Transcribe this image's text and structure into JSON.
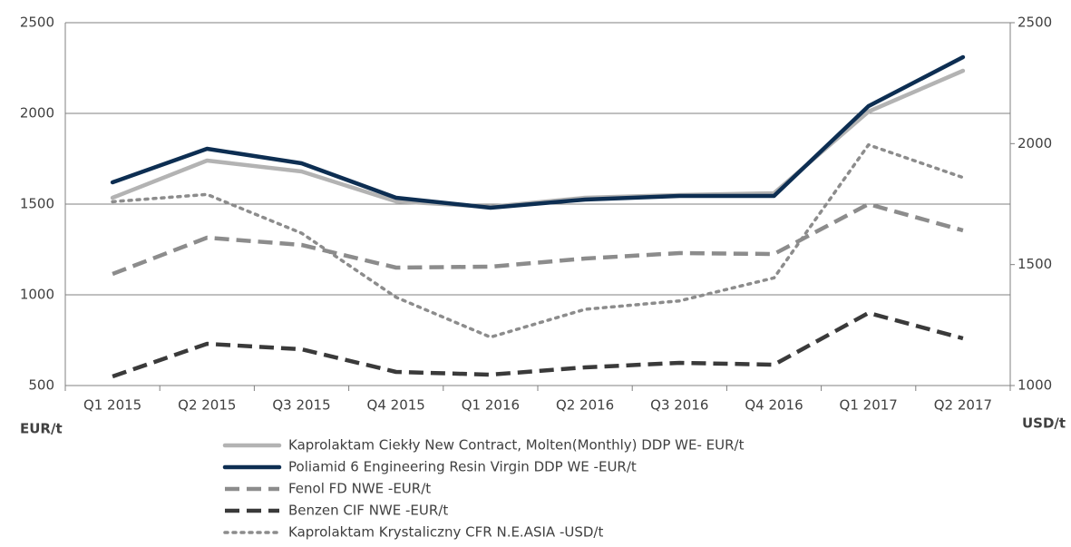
{
  "chart_data": {
    "type": "line",
    "categories": [
      "Q1 2015",
      "Q2 2015",
      "Q3 2015",
      "Q4 2015",
      "Q1 2016",
      "Q2 2016",
      "Q3 2016",
      "Q4 2016",
      "Q1 2017",
      "Q2 2017"
    ],
    "y_label": "EUR/t",
    "y2_label": "USD/t",
    "ylim": [
      500,
      2500
    ],
    "yticks": [
      500,
      1000,
      1500,
      2000,
      2500
    ],
    "y2lim": [
      1000,
      2500
    ],
    "y2ticks": [
      1000,
      1500,
      2000,
      2500
    ],
    "grid": true,
    "legend": "bottom",
    "series": [
      {
        "name": "Kaprolaktam Ciekły New Contract, Molten(Monthly) DDP WE- EUR/t",
        "color": "#b3b3b3",
        "dash": "solid",
        "values": [
          1535,
          1740,
          1680,
          1515,
          1485,
          1535,
          1550,
          1560,
          2010,
          2235
        ]
      },
      {
        "name": "Poliamid 6 Engineering Resin Virgin DDP WE -EUR/t",
        "color": "#0d2e52",
        "dash": "solid",
        "values": [
          1620,
          1805,
          1725,
          1535,
          1480,
          1525,
          1545,
          1545,
          2040,
          2310
        ]
      },
      {
        "name": "Fenol FD NWE -EUR/t",
        "color": "#8c8c8c",
        "dash": "dash",
        "values": [
          1115,
          1315,
          1275,
          1150,
          1155,
          1200,
          1230,
          1225,
          1500,
          1355
        ]
      },
      {
        "name": "Benzen CIF NWE -EUR/t",
        "color": "#3a3a3a",
        "dash": "dash",
        "values": [
          550,
          730,
          700,
          575,
          560,
          600,
          625,
          615,
          900,
          760
        ]
      },
      {
        "name": "Kaprolaktam Krystaliczny CFR N.E.ASIA -USD/t",
        "color": "#8c8c8c",
        "dash": "dot",
        "axis": "y2",
        "values": [
          1760,
          1790,
          1630,
          1365,
          1200,
          1315,
          1350,
          1445,
          1995,
          1860
        ]
      }
    ]
  }
}
